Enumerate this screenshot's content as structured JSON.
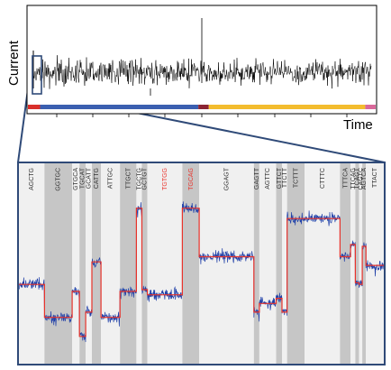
{
  "top_panel": {
    "ylabel": "Current",
    "xlabel": "Time",
    "strip_segments": [
      {
        "start": 0.0,
        "end": 0.035,
        "color": "#d9302b"
      },
      {
        "start": 0.035,
        "end": 0.49,
        "color": "#3b5fb0"
      },
      {
        "start": 0.49,
        "end": 0.52,
        "color": "#8b2333"
      },
      {
        "start": 0.52,
        "end": 0.97,
        "color": "#f3bc2e"
      },
      {
        "start": 0.97,
        "end": 1.0,
        "color": "#d9689a"
      }
    ]
  },
  "zoom_panel": {
    "kmers": [
      {
        "label": "AGCTG",
        "band": [
          0.0,
          0.07
        ],
        "shaded": false,
        "red": false
      },
      {
        "label": "GGTGC",
        "band": [
          0.07,
          0.146
        ],
        "shaded": true,
        "red": false
      },
      {
        "label": "GTGCA",
        "band": [
          0.146,
          0.166
        ],
        "shaded": false,
        "red": false
      },
      {
        "label": "TGCAT",
        "band": [
          0.166,
          0.183
        ],
        "shaded": true,
        "red": false
      },
      {
        "label": "GCATT",
        "band": [
          0.183,
          0.2
        ],
        "shaded": false,
        "red": false
      },
      {
        "label": "CATTG",
        "band": [
          0.2,
          0.225
        ],
        "shaded": true,
        "red": false
      },
      {
        "label": "ATTGC",
        "band": [
          0.225,
          0.277
        ],
        "shaded": false,
        "red": false
      },
      {
        "label": "TTGCT",
        "band": [
          0.277,
          0.322
        ],
        "shaded": true,
        "red": false
      },
      {
        "label": "TGCTG",
        "band": [
          0.322,
          0.337
        ],
        "shaded": false,
        "red": false
      },
      {
        "label": "GCTGT",
        "band": [
          0.337,
          0.352
        ],
        "shaded": true,
        "red": false
      },
      {
        "label": "TGTGG",
        "band": [
          0.352,
          0.448
        ],
        "shaded": false,
        "red": true
      },
      {
        "label": "TGCAG",
        "band": [
          0.448,
          0.494
        ],
        "shaded": true,
        "red": true
      },
      {
        "label": "GGAGT",
        "band": [
          0.494,
          0.644
        ],
        "shaded": false,
        "red": false
      },
      {
        "label": "GAGTT",
        "band": [
          0.644,
          0.659
        ],
        "shaded": true,
        "red": false
      },
      {
        "label": "AGTTC",
        "band": [
          0.659,
          0.705
        ],
        "shaded": false,
        "red": false
      },
      {
        "label": "GTTCT",
        "band": [
          0.705,
          0.721
        ],
        "shaded": true,
        "red": false
      },
      {
        "label": "TTCTT",
        "band": [
          0.721,
          0.735
        ],
        "shaded": false,
        "red": false
      },
      {
        "label": "TCTTT",
        "band": [
          0.735,
          0.783
        ],
        "shaded": true,
        "red": false
      },
      {
        "label": "CTTTC",
        "band": [
          0.783,
          0.88
        ],
        "shaded": false,
        "red": false
      },
      {
        "label": "TTTCA",
        "band": [
          0.88,
          0.909
        ],
        "shaded": true,
        "red": false
      },
      {
        "label": "TTCAG",
        "band": [
          0.909,
          0.922
        ],
        "shaded": false,
        "red": false
      },
      {
        "label": "TCAGT",
        "band": [
          0.922,
          0.932
        ],
        "shaded": true,
        "red": false
      },
      {
        "label": "CAGTC",
        "band": [
          0.932,
          0.941
        ],
        "shaded": false,
        "red": false
      },
      {
        "label": "AGTCA",
        "band": [
          0.941,
          0.951
        ],
        "shaded": true,
        "red": false
      },
      {
        "label": "TTACT",
        "band": [
          0.951,
          1.0
        ],
        "shaded": false,
        "red": false
      }
    ],
    "levels": [
      0.4,
      0.21,
      0.36,
      0.1,
      0.24,
      0.53,
      0.21,
      0.36,
      0.84,
      0.37,
      0.34,
      0.84,
      0.56,
      0.24,
      0.29,
      0.32,
      0.24,
      0.78,
      0.78,
      0.56,
      0.63,
      0.41,
      0.4,
      0.62,
      0.51
    ],
    "colors": {
      "raw_signal": "#1f3fa8",
      "model_fit": "#e8332b",
      "band_shaded": "#c6c6c6",
      "band_light": "#f0f0f0",
      "frame": "#2f4a78"
    }
  }
}
